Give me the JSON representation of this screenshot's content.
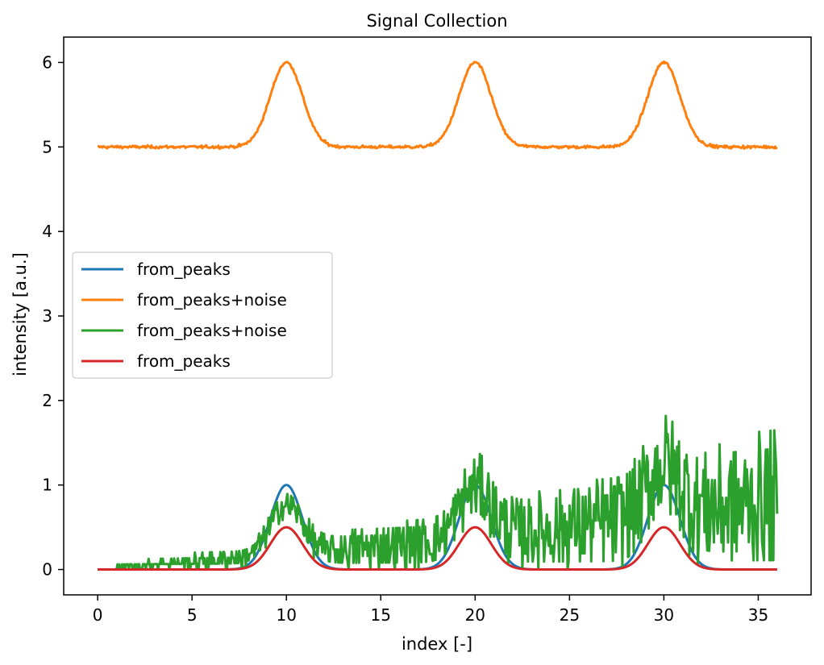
{
  "chart_data": {
    "type": "line",
    "title": "Signal Collection",
    "xlabel": "index [-]",
    "ylabel": "intensity [a.u.]",
    "xlim": [
      -1.8,
      37.8
    ],
    "ylim": [
      -0.3,
      6.3
    ],
    "xticks": [
      0,
      5,
      10,
      15,
      20,
      25,
      30,
      35
    ],
    "xtick_labels": [
      "0",
      "5",
      "10",
      "15",
      "20",
      "25",
      "30",
      "35"
    ],
    "yticks": [
      0,
      1,
      2,
      3,
      4,
      5,
      6
    ],
    "ytick_labels": [
      "0",
      "1",
      "2",
      "3",
      "4",
      "5",
      "6"
    ],
    "grid": false,
    "legend_position": "center-left",
    "x_range": [
      0,
      36
    ],
    "x_step": 0.05,
    "peak_centers": [
      10,
      20,
      30
    ],
    "peak_sigma": 0.85,
    "series": [
      {
        "name": "from_peaks",
        "color": "#1f77b4",
        "peak_height": 1.0,
        "baseline": 0.0,
        "noise": "none",
        "noise_amplitude": 0.0
      },
      {
        "name": "from_peaks+noise",
        "color": "#ff7f0e",
        "peak_height": 1.0,
        "baseline": 5.0,
        "noise": "gaussian",
        "noise_amplitude": 0.012
      },
      {
        "name": "from_peaks+noise",
        "color": "#2ca02c",
        "peak_height": 1.0,
        "baseline": 0.0,
        "noise": "increasing-random",
        "noise_amplitude": 0.5
      },
      {
        "name": "from_peaks",
        "color": "#d62728",
        "peak_height": 0.5,
        "baseline": 0.0,
        "noise": "none",
        "noise_amplitude": 0.0
      }
    ]
  }
}
